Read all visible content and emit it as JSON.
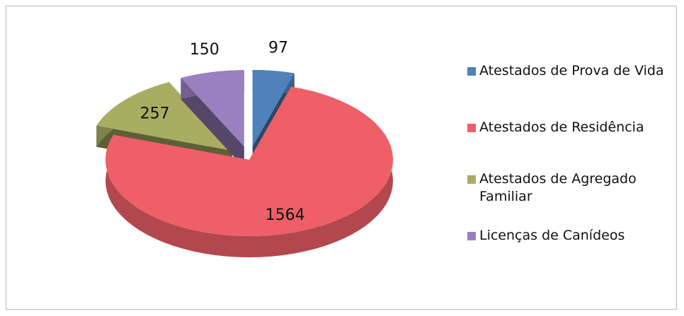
{
  "chart_data": {
    "type": "pie",
    "categories": [
      "Atestados de Prova de Vida",
      "Atestados de Residência",
      "Atestados de Agregado Familiar",
      "Licenças de Canídeos"
    ],
    "values": [
      97,
      1564,
      257,
      150
    ],
    "colors": [
      "#4f81bd",
      "#ef5f68",
      "#a9ad62",
      "#9a80c0"
    ],
    "legend": "right"
  }
}
